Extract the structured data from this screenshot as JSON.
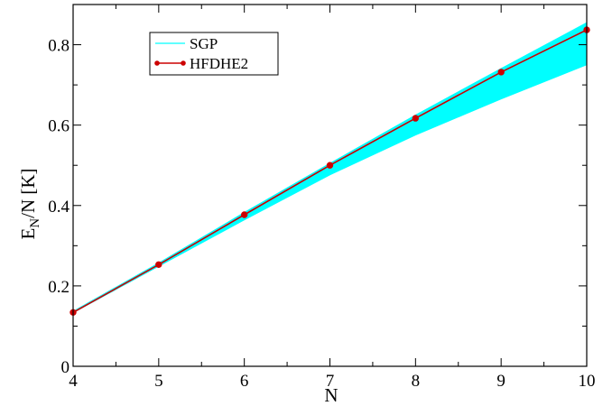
{
  "chart_data": {
    "type": "line",
    "title": "",
    "xlabel": "N",
    "ylabel": {
      "base": "E",
      "sub": "N",
      "rest": "/N [K]"
    },
    "xlim": [
      4,
      10
    ],
    "ylim": [
      0,
      0.9
    ],
    "x_ticks": [
      4,
      5,
      6,
      7,
      8,
      9,
      10
    ],
    "x_tick_labels": [
      "4",
      "5",
      "6",
      "7",
      "8",
      "9",
      "10"
    ],
    "y_ticks": [
      0,
      0.2,
      0.4,
      0.6,
      0.8
    ],
    "y_tick_labels": [
      "0",
      "0.2",
      "0.4",
      "0.6",
      "0.8"
    ],
    "grid": false,
    "legend_position": "top-left",
    "series": [
      {
        "name": "SGP",
        "kind": "band",
        "color": "#00ffff",
        "x": [
          4,
          5,
          6,
          7,
          8,
          9,
          10
        ],
        "upper": [
          0.137,
          0.257,
          0.383,
          0.505,
          0.625,
          0.741,
          0.855
        ],
        "lower": [
          0.133,
          0.249,
          0.364,
          0.476,
          0.575,
          0.665,
          0.75
        ]
      },
      {
        "name": "HFDHE2",
        "kind": "line-markers",
        "color": "#cc0000",
        "x": [
          4,
          5,
          6,
          7,
          8,
          9,
          10
        ],
        "y": [
          0.134,
          0.253,
          0.377,
          0.5,
          0.617,
          0.732,
          0.837
        ]
      }
    ]
  }
}
